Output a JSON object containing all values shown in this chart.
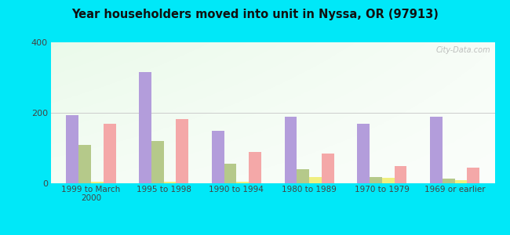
{
  "title": "Year householders moved into unit in Nyssa, OR (97913)",
  "categories": [
    "1999 to March\n2000",
    "1995 to 1998",
    "1990 to 1994",
    "1980 to 1989",
    "1970 to 1979",
    "1969 or earlier"
  ],
  "series": {
    "White Non-Hispanic": [
      193,
      315,
      150,
      188,
      168,
      190
    ],
    "Other Race": [
      108,
      120,
      55,
      40,
      18,
      14
    ],
    "Two or More Races": [
      5,
      5,
      5,
      18,
      15,
      8
    ],
    "Hispanic or Latino": [
      168,
      182,
      88,
      85,
      48,
      45
    ]
  },
  "colors": {
    "White Non-Hispanic": "#b39ddb",
    "Other Race": "#b5c98a",
    "Two or More Races": "#f0ef80",
    "Hispanic or Latino": "#f4a8a8"
  },
  "ylim": [
    0,
    400
  ],
  "yticks": [
    0,
    200,
    400
  ],
  "background_outer": "#00e8f8",
  "bar_width": 0.17,
  "watermark": "City-Data.com"
}
